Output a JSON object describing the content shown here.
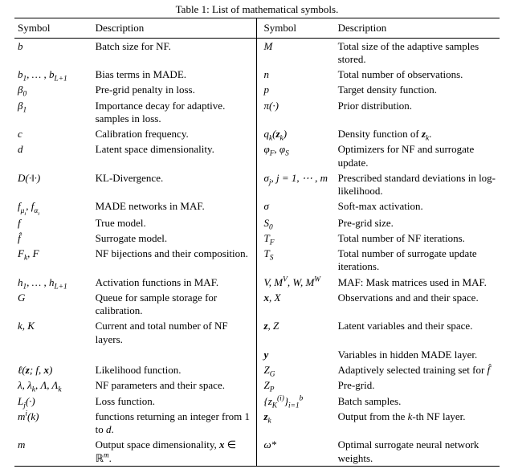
{
  "caption": "Table 1: List of mathematical symbols.",
  "headers": {
    "sym": "Symbol",
    "desc": "Description"
  },
  "rows": [
    {
      "l_sym": "<span class='it'>b</span>",
      "l_desc": "Batch size for NF.",
      "r_sym": "<span class='it'>M</span>",
      "r_desc": "Total size of the adaptive samples stored."
    },
    {
      "l_sym": "<span class='it'>b</span><sub>1</sub>, … , <span class='it'>b</span><sub><span class='it'>L</span>+1</sub>",
      "l_desc": "Bias terms in MADE.",
      "r_sym": "<span class='it'>n</span>",
      "r_desc": "Total number of observations."
    },
    {
      "l_sym": "<span class='it'>β</span><sub>0</sub>",
      "l_desc": "Pre-grid penalty in loss.",
      "r_sym": "<span class='it'>p</span>",
      "r_desc": "Target density function."
    },
    {
      "l_sym": "<span class='it'>β</span><sub>1</sub>",
      "l_desc": "Importance decay for adaptive. samples in loss.",
      "r_sym": "<span class='it'>π</span>(·)",
      "r_desc": "Prior distribution."
    },
    {
      "l_sym": "<span class='it'>c</span>",
      "l_desc": "Calibration frequency.",
      "r_sym": "<span class='it'>q<sub>k</sub></span>(<span class='it'><b>z</b><sub>k</sub></span>)",
      "r_desc": "Density function of <span class='it'><b>z</b><sub>k</sub></span>."
    },
    {
      "l_sym": "<span class='it'>d</span>",
      "l_desc": "Latent space dimensionality.",
      "r_sym": "<span class='it'>φ<sub>F</sub></span>, <span class='it'>φ<sub>S</sub></span>",
      "r_desc": "Optimizers for NF and surrogate update."
    },
    {
      "l_sym": "<span class='it'>D</span>(·‖·)",
      "l_desc": "KL-Divergence.",
      "r_sym": "<span class='it'>σ<sub>j</sub></span>, <span class='it'>j</span> = 1, ⋯ , <span class='it'>m</span>",
      "r_desc": "Prescribed standard deviations in log-likelihood."
    },
    {
      "l_sym": "<span class='it'>f<sub>μ<sub>i</sub></sub></span>, <span class='it'>f<sub>α<sub>i</sub></sub></span>",
      "l_desc": "MADE networks in MAF.",
      "r_sym": "<span class='it'>σ</span>",
      "r_desc": "Soft-max activation."
    },
    {
      "l_sym": "<span class='it'>f</span>",
      "l_desc": "True model.",
      "r_sym": "<span class='it'>S</span><sub>0</sub>",
      "r_desc": "Pre-grid size."
    },
    {
      "l_sym": "<span class='it'>f̂</span>",
      "l_desc": "Surrogate model.",
      "r_sym": "<span class='it'>T<sub>F</sub></span>",
      "r_desc": "Total number of NF iterations."
    },
    {
      "l_sym": "<span class='it'>F<sub>k</sub></span>, <span class='it'>F</span>",
      "l_desc": "NF bijections and their composition.",
      "r_sym": "<span class='it'>T<sub>S</sub></span>",
      "r_desc": "Total number of surrogate update iterations."
    },
    {
      "l_sym": "<span class='it'>h</span><sub>1</sub>, … , <span class='it'>h</span><sub><span class='it'>L</span>+1</sub>",
      "l_desc": "Activation functions in MAF.",
      "r_sym": "<span class='it'>V</span>, <span class='it'>M<sup>V</sup></span>, <span class='it'>W</span>, <span class='it'>M<sup>W</sup></span>",
      "r_desc": "MAF: Mask matrices used in MAF."
    },
    {
      "l_sym": "<span class='it'>G</span>",
      "l_desc": "Queue for sample storage for calibration.",
      "r_sym": "<span class='it'><b>x</b></span>, <span class='it'>X</span>",
      "r_desc": "Observations and and their space."
    },
    {
      "l_sym": "<span class='it'>k</span>, <span class='it'>K</span>",
      "l_desc": "Current and total number of NF layers.",
      "r_sym": "<span class='it'><b>z</b></span>, <span class='it'>Z</span>",
      "r_desc": "Latent variables and their space."
    },
    {
      "l_sym": "",
      "l_desc": "",
      "r_sym": "<span class='it'><b>y</b></span>",
      "r_desc": "Variables in hidden MADE layer."
    },
    {
      "l_sym": "ℓ(<span class='it'><b>z</b></span>; <span class='it'>f</span>, <span class='it'><b>x</b></span>)",
      "l_desc": "Likelihood function.",
      "r_sym": "<span class='it'>Z<sub>G</sub></span>",
      "r_desc": "Adaptively selected training set for <span class='it'>f̂</span>"
    },
    {
      "l_sym": "<span class='it'>λ</span>, <span class='it'>λ<sub>k</sub></span>, Λ, Λ<sub><span class='it'>k</span></sub>",
      "l_desc": "NF parameters and their space.",
      "r_sym": "<span class='it'>Z<sub>P</sub></span>",
      "r_desc": "Pre-grid."
    },
    {
      "l_sym": "<span class='it'>L<sub>j</sub></span>(·)",
      "l_desc": "Loss function.",
      "r_sym": "{<span class='it'>z<sub>K</sub></span><sup>(<span class='it'>i</span>)</sup>}<sub><span class='it'>i</span>=1</sub><sup><span class='it'>b</span></sup>",
      "r_desc": "Batch samples."
    },
    {
      "l_sym": "<span class='it'>m<sup>i</sup></span>(<span class='it'>k</span>)",
      "l_desc": "functions returning an integer from 1 to <span class='it'>d</span>.",
      "r_sym": "<span class='it'><b>z</b><sub>k</sub></span>",
      "r_desc": "Output from the <span class='it'>k</span>-th NF layer."
    },
    {
      "l_sym": "<span class='it'>m</span>",
      "l_desc": "Output space dimensionality, <span class='it'><b>x</b></span> ∈ ℝ<sup><span class='it'>m</span></sup>.",
      "r_sym": "<span class='it'>ω</span>*",
      "r_desc": "Optimal surrogate neural network weights."
    }
  ]
}
